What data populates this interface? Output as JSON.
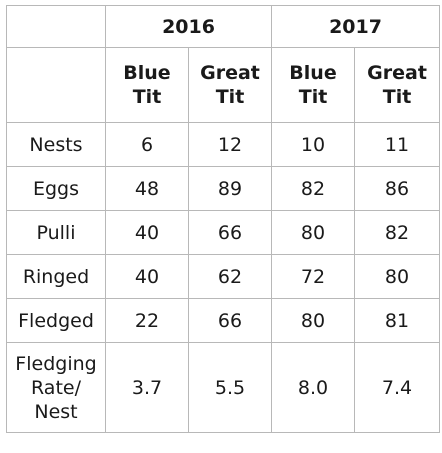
{
  "years": [
    "2016",
    "2017"
  ],
  "species": [
    "Blue Tit",
    "Great Tit",
    "Blue Tit",
    "Great Tit"
  ],
  "rows": [
    {
      "label": "Nests",
      "values": [
        "6",
        "12",
        "10",
        "11"
      ]
    },
    {
      "label": "Eggs",
      "values": [
        "48",
        "89",
        "82",
        "86"
      ]
    },
    {
      "label": "Pulli",
      "values": [
        "40",
        "66",
        "80",
        "82"
      ]
    },
    {
      "label": "Ringed",
      "values": [
        "40",
        "62",
        "72",
        "80"
      ]
    },
    {
      "label": "Fledged",
      "values": [
        "22",
        "66",
        "80",
        "81"
      ]
    },
    {
      "label": "Fledging Rate/ Nest",
      "values": [
        "3.7",
        "5.5",
        "8.0",
        "7.4"
      ]
    }
  ]
}
